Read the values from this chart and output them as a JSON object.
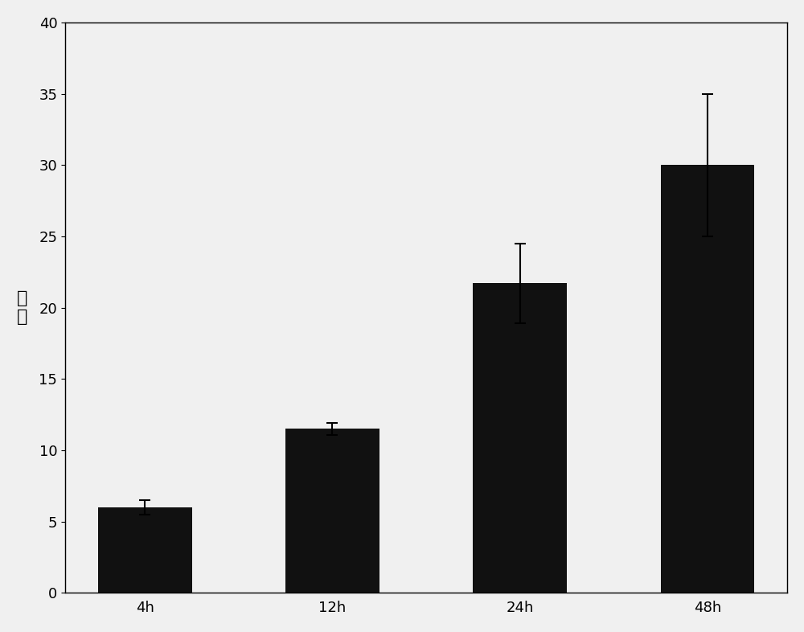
{
  "categories": [
    "4h",
    "12h",
    "24h",
    "48h"
  ],
  "values": [
    6.0,
    11.5,
    21.7,
    30.0
  ],
  "errors": [
    0.5,
    0.4,
    2.8,
    5.0
  ],
  "bar_color": "#111111",
  "ylabel": "倍\n数",
  "ylim": [
    0,
    40
  ],
  "yticks": [
    0,
    5,
    10,
    15,
    20,
    25,
    30,
    35,
    40
  ],
  "background_color": "#f0f0f0",
  "bar_width": 0.5,
  "title_fontsize": 14,
  "tick_fontsize": 13,
  "ylabel_fontsize": 16
}
